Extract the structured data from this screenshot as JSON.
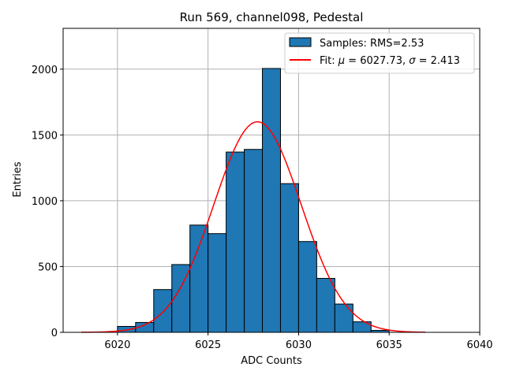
{
  "chart_data": {
    "type": "histogram",
    "title": "Run 569, channel098, Pedestal",
    "xlabel": "ADC Counts",
    "ylabel": "Entries",
    "xlim": [
      6017,
      6040
    ],
    "ylim": [
      0,
      2310
    ],
    "grid": true,
    "x_ticks": [
      6020,
      6025,
      6030,
      6035,
      6040
    ],
    "y_ticks": [
      0,
      500,
      1000,
      1500,
      2000
    ],
    "bin_edges": [
      6020,
      6021,
      6022,
      6023,
      6024,
      6025,
      6026,
      6027,
      6028,
      6029,
      6030,
      6031,
      6032,
      6033,
      6034,
      6035
    ],
    "counts": [
      45,
      75,
      325,
      515,
      815,
      750,
      1370,
      1390,
      2005,
      1130,
      690,
      410,
      215,
      80,
      15
    ],
    "bar_color": "#1f77b4",
    "fit": {
      "mu": 6027.73,
      "sigma": 2.413,
      "amplitude": 1600,
      "x_range": [
        6018,
        6037
      ],
      "color": "#ff0000"
    },
    "legend": {
      "position": "top-right",
      "entries": [
        {
          "type": "patch",
          "label": "Samples: RMS=2.53"
        },
        {
          "type": "line",
          "prefix": "Fit: ",
          "mu_symbol": "μ",
          "mu_text": " = 6027.73, ",
          "sigma_symbol": "σ",
          "sigma_text": " = 2.413"
        }
      ]
    }
  }
}
